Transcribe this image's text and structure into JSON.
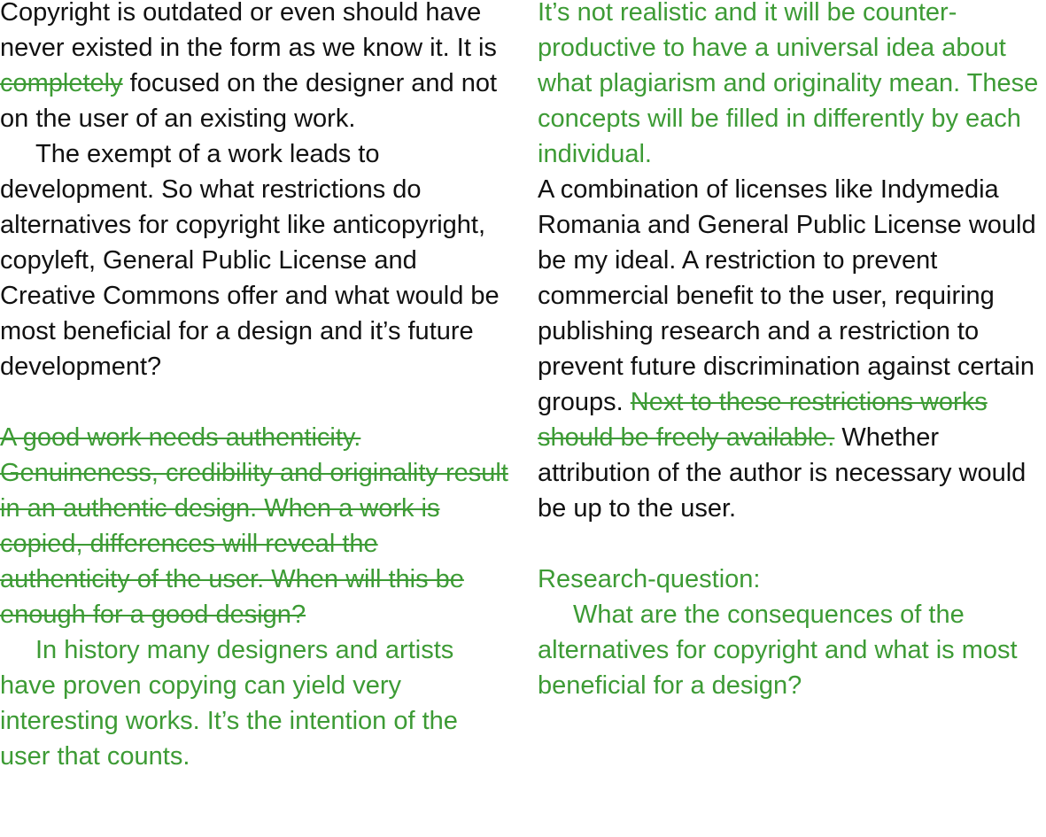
{
  "left_column": {
    "p1_before": "Copyright is outdated or even should have never existed in the form as we know it. It is ",
    "p1_struck": "completely",
    "p1_after": " focused on the designer and not on the user of an existing work.",
    "p2": "The exempt of a work leads to development. So what restrictions do alternatives for copyright like anticopyright, copyleft, General Public License and Creative Commons offer and what would be most beneficial for a design and it’s future development?",
    "p3_struck": "A good work needs authenticity. Genuineness, credibility and originality result in an authentic design.  When a work is copied, differences will reveal the authenticity of the user. When will this be enough for a good design? ",
    "p4": "In history many designers and artists have proven copying can yield very interesting works. It’s the intention of the user that counts."
  },
  "right_column": {
    "p1": "It’s not realistic and it will be counter-productive to have a universal idea about what plagiarism and originality mean. These concepts will be filled in differently by each individual.",
    "p2_before": "A combination of licenses like Indymedia Romania and General Public License would be my ideal. A restriction to prevent commercial benefit to the user, requiring publishing research and a restriction to prevent future discrimination against certain groups. ",
    "p2_struck": "Next to these restrictions works should be freely available.",
    "p2_after": " Whether attribution of the author is necessary would be up to the user.",
    "rq_label": "Research-question:",
    "rq_text": "What are the consequences of the alternatives for copyright and what is most beneficial for a design?"
  },
  "colors": {
    "text": "#111111",
    "green": "#3d9b35",
    "background": "#ffffff"
  }
}
